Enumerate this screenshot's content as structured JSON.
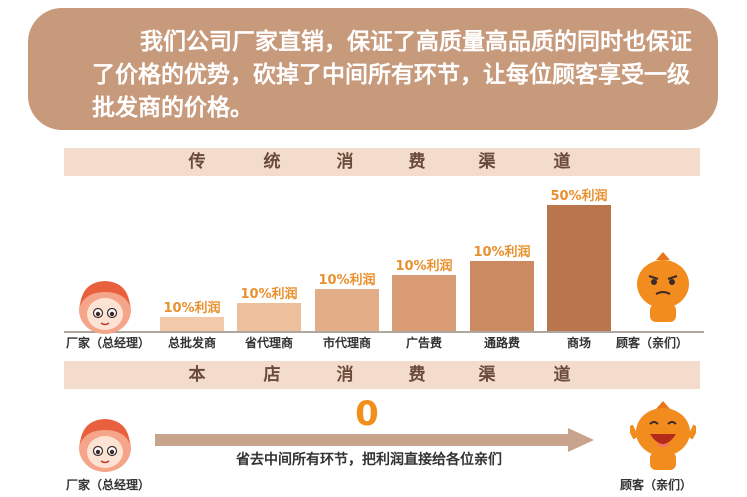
{
  "banner": {
    "text": "我们公司厂家直销，保证了高质量高品质的同时也保证了价格的优势，砍掉了中间所有环节，让每位顾客享受一级批发商的价格。"
  },
  "traditional": {
    "title_chars": [
      "传",
      "统",
      "消",
      "费",
      "渠",
      "道"
    ],
    "manufacturer_label": "厂家（总经理）",
    "customer_label": "顾客（亲们）",
    "stages": [
      {
        "label": "总批发商",
        "markup": "10%利润",
        "height_level": 1
      },
      {
        "label": "省代理商",
        "markup": "10%利润",
        "height_level": 2
      },
      {
        "label": "市代理商",
        "markup": "10%利润",
        "height_level": 3
      },
      {
        "label": "广告费",
        "markup": "10%利润",
        "height_level": 4
      },
      {
        "label": "通路费",
        "markup": "10%利润",
        "height_level": 5
      },
      {
        "label": "商场",
        "markup": "50%利润",
        "height_level": 9
      }
    ]
  },
  "store": {
    "title_chars": [
      "本",
      "店",
      "消",
      "费",
      "渠",
      "道"
    ],
    "zero": "0",
    "arrow_text": "省去中间所有环节，把利润直接给各位亲们",
    "manufacturer_label": "厂家（总经理）",
    "customer_label": "顾客（亲们）"
  },
  "colors": {
    "banner_bg": "#c89a7c",
    "band_bg": "#f3dccb",
    "markup_text": "#e8912e",
    "bars": [
      "#f2c9a9",
      "#eebf9b",
      "#e3ad88",
      "#d99c74",
      "#cc8a61",
      "#b9764d"
    ]
  }
}
